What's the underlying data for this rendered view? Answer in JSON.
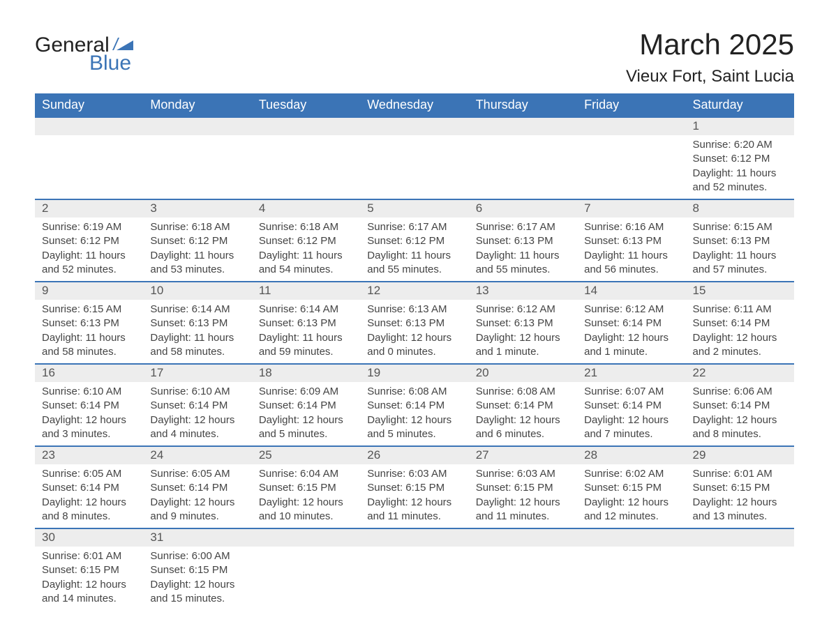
{
  "brand": {
    "word1": "General",
    "word2": "Blue",
    "color_text": "#222222",
    "color_accent": "#3b74b6"
  },
  "title": "March 2025",
  "location": "Vieux Fort, Saint Lucia",
  "theme": {
    "header_bg": "#3b74b6",
    "header_fg": "#ffffff",
    "row_border": "#3b74b6",
    "daynum_bg": "#ededed",
    "body_text": "#444444",
    "page_bg": "#ffffff",
    "title_fontsize": 42,
    "subtitle_fontsize": 24,
    "header_fontsize": 18,
    "cell_fontsize": 15
  },
  "weekday_labels": [
    "Sunday",
    "Monday",
    "Tuesday",
    "Wednesday",
    "Thursday",
    "Friday",
    "Saturday"
  ],
  "labels": {
    "sunrise": "Sunrise:",
    "sunset": "Sunset:",
    "daylight": "Daylight:"
  },
  "weeks": [
    [
      null,
      null,
      null,
      null,
      null,
      null,
      {
        "day": "1",
        "sunrise": "6:20 AM",
        "sunset": "6:12 PM",
        "daylight": "11 hours and 52 minutes."
      }
    ],
    [
      {
        "day": "2",
        "sunrise": "6:19 AM",
        "sunset": "6:12 PM",
        "daylight": "11 hours and 52 minutes."
      },
      {
        "day": "3",
        "sunrise": "6:18 AM",
        "sunset": "6:12 PM",
        "daylight": "11 hours and 53 minutes."
      },
      {
        "day": "4",
        "sunrise": "6:18 AM",
        "sunset": "6:12 PM",
        "daylight": "11 hours and 54 minutes."
      },
      {
        "day": "5",
        "sunrise": "6:17 AM",
        "sunset": "6:12 PM",
        "daylight": "11 hours and 55 minutes."
      },
      {
        "day": "6",
        "sunrise": "6:17 AM",
        "sunset": "6:13 PM",
        "daylight": "11 hours and 55 minutes."
      },
      {
        "day": "7",
        "sunrise": "6:16 AM",
        "sunset": "6:13 PM",
        "daylight": "11 hours and 56 minutes."
      },
      {
        "day": "8",
        "sunrise": "6:15 AM",
        "sunset": "6:13 PM",
        "daylight": "11 hours and 57 minutes."
      }
    ],
    [
      {
        "day": "9",
        "sunrise": "6:15 AM",
        "sunset": "6:13 PM",
        "daylight": "11 hours and 58 minutes."
      },
      {
        "day": "10",
        "sunrise": "6:14 AM",
        "sunset": "6:13 PM",
        "daylight": "11 hours and 58 minutes."
      },
      {
        "day": "11",
        "sunrise": "6:14 AM",
        "sunset": "6:13 PM",
        "daylight": "11 hours and 59 minutes."
      },
      {
        "day": "12",
        "sunrise": "6:13 AM",
        "sunset": "6:13 PM",
        "daylight": "12 hours and 0 minutes."
      },
      {
        "day": "13",
        "sunrise": "6:12 AM",
        "sunset": "6:13 PM",
        "daylight": "12 hours and 1 minute."
      },
      {
        "day": "14",
        "sunrise": "6:12 AM",
        "sunset": "6:14 PM",
        "daylight": "12 hours and 1 minute."
      },
      {
        "day": "15",
        "sunrise": "6:11 AM",
        "sunset": "6:14 PM",
        "daylight": "12 hours and 2 minutes."
      }
    ],
    [
      {
        "day": "16",
        "sunrise": "6:10 AM",
        "sunset": "6:14 PM",
        "daylight": "12 hours and 3 minutes."
      },
      {
        "day": "17",
        "sunrise": "6:10 AM",
        "sunset": "6:14 PM",
        "daylight": "12 hours and 4 minutes."
      },
      {
        "day": "18",
        "sunrise": "6:09 AM",
        "sunset": "6:14 PM",
        "daylight": "12 hours and 5 minutes."
      },
      {
        "day": "19",
        "sunrise": "6:08 AM",
        "sunset": "6:14 PM",
        "daylight": "12 hours and 5 minutes."
      },
      {
        "day": "20",
        "sunrise": "6:08 AM",
        "sunset": "6:14 PM",
        "daylight": "12 hours and 6 minutes."
      },
      {
        "day": "21",
        "sunrise": "6:07 AM",
        "sunset": "6:14 PM",
        "daylight": "12 hours and 7 minutes."
      },
      {
        "day": "22",
        "sunrise": "6:06 AM",
        "sunset": "6:14 PM",
        "daylight": "12 hours and 8 minutes."
      }
    ],
    [
      {
        "day": "23",
        "sunrise": "6:05 AM",
        "sunset": "6:14 PM",
        "daylight": "12 hours and 8 minutes."
      },
      {
        "day": "24",
        "sunrise": "6:05 AM",
        "sunset": "6:14 PM",
        "daylight": "12 hours and 9 minutes."
      },
      {
        "day": "25",
        "sunrise": "6:04 AM",
        "sunset": "6:15 PM",
        "daylight": "12 hours and 10 minutes."
      },
      {
        "day": "26",
        "sunrise": "6:03 AM",
        "sunset": "6:15 PM",
        "daylight": "12 hours and 11 minutes."
      },
      {
        "day": "27",
        "sunrise": "6:03 AM",
        "sunset": "6:15 PM",
        "daylight": "12 hours and 11 minutes."
      },
      {
        "day": "28",
        "sunrise": "6:02 AM",
        "sunset": "6:15 PM",
        "daylight": "12 hours and 12 minutes."
      },
      {
        "day": "29",
        "sunrise": "6:01 AM",
        "sunset": "6:15 PM",
        "daylight": "12 hours and 13 minutes."
      }
    ],
    [
      {
        "day": "30",
        "sunrise": "6:01 AM",
        "sunset": "6:15 PM",
        "daylight": "12 hours and 14 minutes."
      },
      {
        "day": "31",
        "sunrise": "6:00 AM",
        "sunset": "6:15 PM",
        "daylight": "12 hours and 15 minutes."
      },
      null,
      null,
      null,
      null,
      null
    ]
  ]
}
